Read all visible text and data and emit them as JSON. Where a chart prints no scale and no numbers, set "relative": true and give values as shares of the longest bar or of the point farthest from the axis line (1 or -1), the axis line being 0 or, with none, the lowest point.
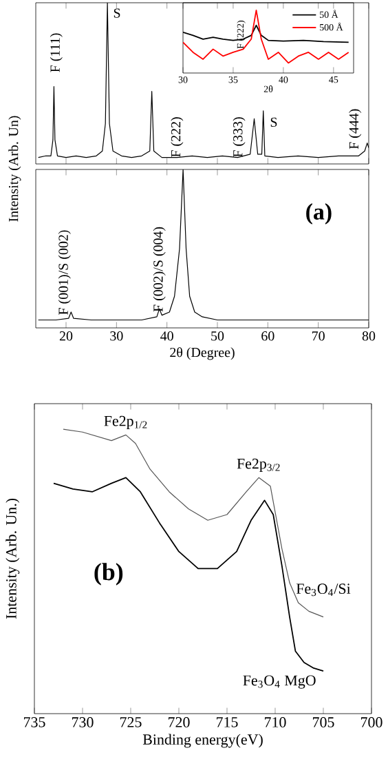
{
  "chart_data": [
    {
      "type": "line",
      "relative": true,
      "xlim": [
        14,
        80
      ],
      "xticks": [
        20,
        30,
        40,
        50,
        60,
        70,
        80
      ],
      "tick_labels": false,
      "ylabel": "Intensity (Arb. Un)",
      "series": [
        {
          "color": "#000000",
          "x": [
            14.5,
            16,
            17,
            17.4,
            17.6,
            17.8,
            18.3,
            20,
            22,
            24,
            26,
            27.2,
            27.8,
            28.2,
            28.6,
            29.3,
            31,
            33,
            35,
            36.6,
            37.0,
            37.4,
            39,
            42,
            45,
            48,
            51,
            54,
            56.5,
            57.3,
            58,
            58.8,
            59.1,
            59.4,
            62,
            66,
            70,
            74,
            78,
            79.2,
            79.7,
            80
          ],
          "values": [
            0.04,
            0.05,
            0.05,
            0.15,
            0.48,
            0.15,
            0.05,
            0.04,
            0.05,
            0.04,
            0.05,
            0.08,
            0.25,
            1.0,
            0.25,
            0.08,
            0.05,
            0.04,
            0.05,
            0.08,
            0.45,
            0.08,
            0.04,
            0.04,
            0.05,
            0.04,
            0.05,
            0.04,
            0.06,
            0.28,
            0.06,
            0.06,
            0.33,
            0.05,
            0.04,
            0.05,
            0.04,
            0.05,
            0.05,
            0.08,
            0.13,
            0.1
          ]
        }
      ],
      "annotations": [
        {
          "text": "F (111)",
          "x": 17.6,
          "y": 0.48
        },
        {
          "text": "S",
          "x": 28.2,
          "y": 1.0
        },
        {
          "text": "F (222)",
          "x": 42.0,
          "y": 0.03
        },
        {
          "text": "F (333)",
          "x": 54.3,
          "y": 0.03
        },
        {
          "text": "S",
          "x": 60.1,
          "y": 0.22
        },
        {
          "text": "F (444)",
          "x": 77.3,
          "y": 0.08
        }
      ]
    },
    {
      "type": "line",
      "relative": true,
      "xlim": [
        14,
        80
      ],
      "xticks": [
        20,
        30,
        40,
        50,
        60,
        70,
        80
      ],
      "tick_labels": "x",
      "xlabel": "2θ (Degree)",
      "series": [
        {
          "color": "#000000",
          "x": [
            14.5,
            18,
            20.5,
            21,
            21.5,
            25,
            30,
            35,
            38,
            38.5,
            39,
            40.5,
            41.5,
            42.5,
            43.2,
            43.8,
            44.5,
            45.5,
            47,
            50,
            55,
            60,
            65,
            70,
            75,
            80
          ],
          "values": [
            0.05,
            0.05,
            0.06,
            0.1,
            0.06,
            0.05,
            0.05,
            0.05,
            0.07,
            0.12,
            0.08,
            0.1,
            0.2,
            0.5,
            1.0,
            0.5,
            0.2,
            0.1,
            0.07,
            0.05,
            0.05,
            0.05,
            0.05,
            0.05,
            0.05,
            0.05
          ]
        }
      ],
      "annotations": [
        {
          "text": "F (001)/S (002)",
          "x": 19.7,
          "y": 0.07
        },
        {
          "text": "F (002)/S (004)",
          "x": 38.5,
          "y": 0.09
        },
        "(a)"
      ]
    },
    {
      "type": "line",
      "relative": true,
      "xlim": [
        30,
        47
      ],
      "xticks": [
        30,
        35,
        40,
        45
      ],
      "tick_labels": "x",
      "xlabel": "2θ",
      "legend": "top right",
      "series": [
        {
          "name": "50 Å",
          "color": "#000000",
          "x": [
            30,
            31,
            32,
            33,
            34,
            35,
            36,
            36.8,
            37.3,
            37.8,
            38.5,
            40,
            42,
            44,
            46.5
          ],
          "values": [
            0.65,
            0.6,
            0.54,
            0.57,
            0.54,
            0.52,
            0.54,
            0.6,
            0.76,
            0.6,
            0.52,
            0.51,
            0.52,
            0.5,
            0.49
          ]
        },
        {
          "name": "500 Å",
          "color": "#ff0000",
          "x": [
            30,
            31,
            32,
            33,
            34,
            35,
            36,
            36.8,
            37.3,
            37.8,
            38.5,
            39.5,
            40.5,
            41.5,
            42.5,
            43.5,
            44.5,
            45.5,
            46.5
          ],
          "values": [
            0.49,
            0.33,
            0.22,
            0.38,
            0.27,
            0.33,
            0.38,
            0.54,
            1.0,
            0.54,
            0.22,
            0.33,
            0.16,
            0.27,
            0.33,
            0.22,
            0.33,
            0.22,
            0.33
          ]
        }
      ],
      "annotations": [
        {
          "text": "F (222)",
          "x": 35.8,
          "y": 0.36
        }
      ]
    },
    {
      "type": "line",
      "relative": true,
      "xlim": [
        735,
        700
      ],
      "xticks": [
        735,
        730,
        725,
        720,
        715,
        710,
        705,
        700
      ],
      "tick_labels": "x",
      "xlabel": "Binding energy(eV)",
      "ylabel": "Intensity (Arb. Un.)",
      "series": [
        {
          "name": "Fe$_{3}$O$_{4}$/Si",
          "color": "#555555",
          "x": [
            732,
            730,
            727,
            725.5,
            724.5,
            723,
            721,
            719,
            717,
            715,
            713,
            711.7,
            710.5,
            709.3,
            708.5,
            707.6,
            706.5,
            705
          ],
          "values": [
            1.0,
            0.99,
            0.96,
            0.98,
            0.95,
            0.86,
            0.78,
            0.72,
            0.68,
            0.7,
            0.78,
            0.83,
            0.8,
            0.58,
            0.46,
            0.39,
            0.36,
            0.34
          ]
        },
        {
          "name": "Fe$_{3}$O$_{4}$ MgO",
          "color": "#000000",
          "x": [
            733,
            731,
            729,
            727,
            725.5,
            724,
            722,
            720,
            718,
            716,
            714,
            712.5,
            711.1,
            710.2,
            709.3,
            708.5,
            707.9,
            707,
            706,
            705
          ],
          "values": [
            0.81,
            0.79,
            0.78,
            0.81,
            0.83,
            0.78,
            0.67,
            0.57,
            0.51,
            0.51,
            0.57,
            0.68,
            0.75,
            0.7,
            0.52,
            0.34,
            0.22,
            0.18,
            0.16,
            0.15
          ]
        }
      ],
      "annotations": [
        {
          "text": "Fe2p$_{1/2}$",
          "x": 725.5,
          "y": 0.98
        },
        {
          "text": "Fe2p$_{3/2}$",
          "x": 711.7,
          "y": 0.83
        },
        "(b)"
      ]
    }
  ]
}
